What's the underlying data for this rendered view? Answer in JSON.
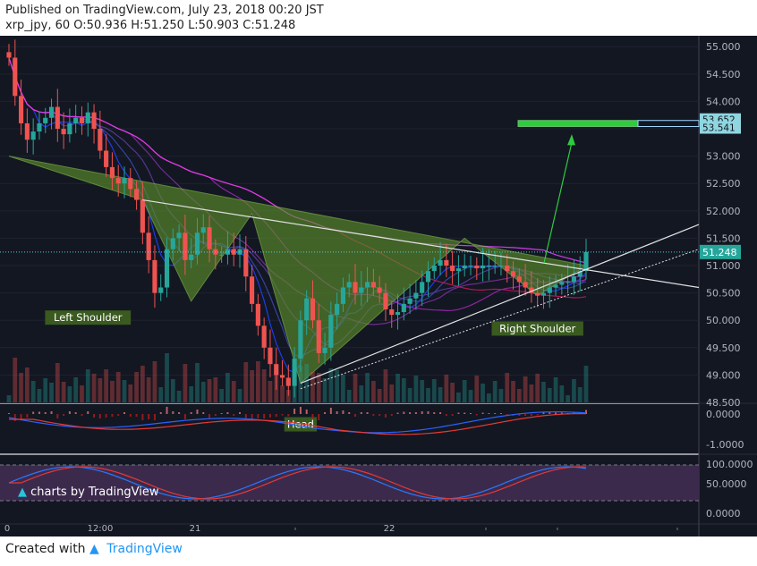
{
  "header": {
    "published": "Published on TradingView.com, July 23, 2018 00:20 JST",
    "symbol_line": "xrp_jpy, 60 O:50.936 H:51.250 L:50.903 C:51.248"
  },
  "footer": {
    "created_with": "Created with",
    "brand": "TradingView"
  },
  "watermark": "charts by TradingView",
  "colors": {
    "background": "#131722",
    "up": "#26a69a",
    "down": "#ef5350",
    "pattern_fill": "#5b8c2a",
    "label_bg": "#3a5a20",
    "target_box": "#2ecc40",
    "price_badge": "#8fd6e0",
    "stoch_band": "#3c2a4d",
    "macd_line": "#2962ff",
    "signal_line": "#e53935"
  },
  "chart_data": [
    {
      "type": "candlestick",
      "pane": "price",
      "ylim": [
        48.5,
        55.2
      ],
      "y_ticks": [
        "55.000",
        "54.500",
        "54.000",
        "53.500",
        "53.000",
        "52.500",
        "52.000",
        "51.500",
        "51.000",
        "50.500",
        "50.000",
        "49.500",
        "49.000",
        "48.500"
      ],
      "x_ticks": [
        "0",
        "12:00",
        "21",
        "",
        "22",
        "",
        "",
        ""
      ],
      "last_price": "51.248",
      "target_prices": [
        "53.652",
        "53.541"
      ],
      "annotations": [
        "Left Shoulder",
        "Head",
        "Right Shoulder"
      ],
      "closes": [
        54.8,
        54.1,
        53.6,
        53.3,
        53.45,
        53.6,
        53.7,
        53.9,
        53.5,
        53.4,
        53.6,
        53.7,
        53.6,
        53.8,
        53.5,
        53.1,
        52.8,
        52.6,
        52.5,
        52.6,
        52.4,
        52.2,
        51.6,
        51.1,
        50.5,
        50.6,
        51.3,
        51.5,
        51.6,
        51.1,
        51.2,
        51.6,
        51.7,
        51.3,
        51.2,
        51.2,
        51.3,
        51.2,
        51.3,
        50.8,
        50.3,
        49.9,
        49.5,
        49.2,
        49.0,
        48.95,
        48.8,
        49.3,
        50.0,
        50.4,
        50.0,
        49.4,
        49.5,
        50.1,
        50.3,
        50.6,
        50.7,
        50.5,
        50.6,
        50.7,
        50.6,
        50.5,
        50.2,
        50.1,
        50.15,
        50.3,
        50.4,
        50.5,
        50.7,
        50.9,
        51.0,
        51.1,
        51.0,
        50.9,
        50.95,
        51.0,
        51.0,
        50.95,
        51.0,
        51.0,
        51.0,
        51.0,
        50.9,
        50.8,
        50.7,
        50.6,
        50.5,
        50.45,
        50.5,
        50.6,
        50.65,
        50.7,
        50.7,
        50.8,
        50.9,
        51.248
      ]
    },
    {
      "type": "histogram_line",
      "pane": "macd",
      "y_ticks": [
        "0.0000",
        "-1.0000"
      ]
    },
    {
      "type": "line",
      "pane": "stochastic",
      "y_ticks": [
        "100.0000",
        "50.0000",
        "0.0000"
      ]
    }
  ]
}
